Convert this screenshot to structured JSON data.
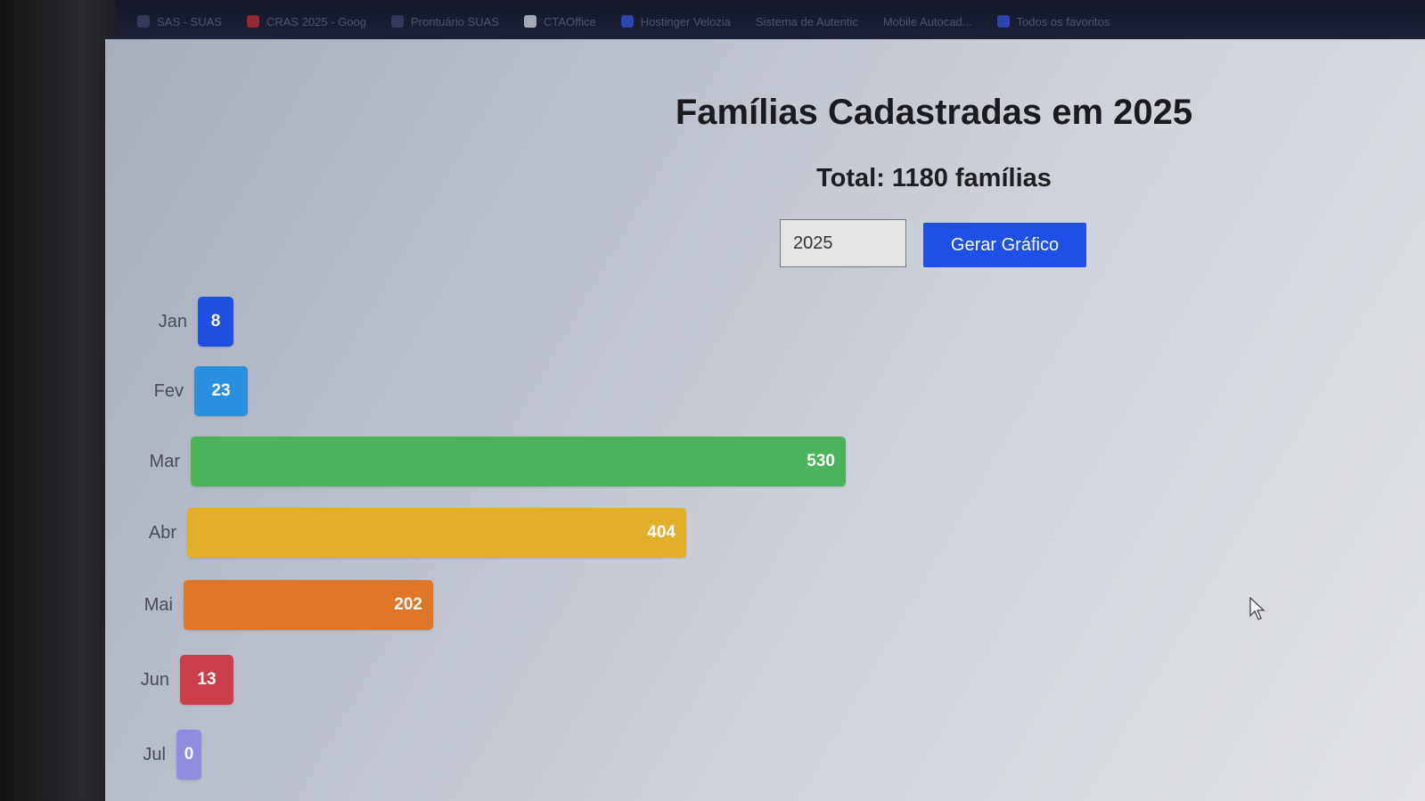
{
  "bookmarks": [
    {
      "label": "SAS - SUAS",
      "icon": "refresh-icon",
      "color": ""
    },
    {
      "label": "CRAS 2025 - Goog",
      "icon": "red-app-icon",
      "color": "red"
    },
    {
      "label": "Prontuário SUAS",
      "icon": "chart-icon",
      "color": ""
    },
    {
      "label": "CTAOffice",
      "icon": "bird-icon",
      "color": "white"
    },
    {
      "label": "Hostinger Velozia",
      "icon": "h-logo-icon",
      "color": "blue"
    },
    {
      "label": "Sistema de Autentic",
      "icon": "",
      "color": ""
    },
    {
      "label": "Mobile Autocad...",
      "icon": "",
      "color": ""
    },
    {
      "label": "Todos os favoritos",
      "icon": "folder-icon",
      "color": "blue"
    }
  ],
  "page": {
    "title": "Famílias Cadastradas em 2025",
    "total": "Total: 1180 famílias",
    "year_input_value": "2025",
    "button_label": "Gerar Gráfico"
  },
  "chart_data": {
    "type": "bar",
    "orientation": "horizontal",
    "categories": [
      "Jan",
      "Fev",
      "Mar",
      "Abr",
      "Mai",
      "Jun",
      "Jul"
    ],
    "values": [
      8,
      23,
      530,
      404,
      202,
      13,
      0
    ],
    "colors": [
      "#1f4fe0",
      "#2b8fe0",
      "#4cb35a",
      "#e3ae2b",
      "#e07628",
      "#cc3d4d",
      "#8f8ce0"
    ],
    "title": "",
    "xlabel": "",
    "ylabel": "",
    "grid": false
  }
}
